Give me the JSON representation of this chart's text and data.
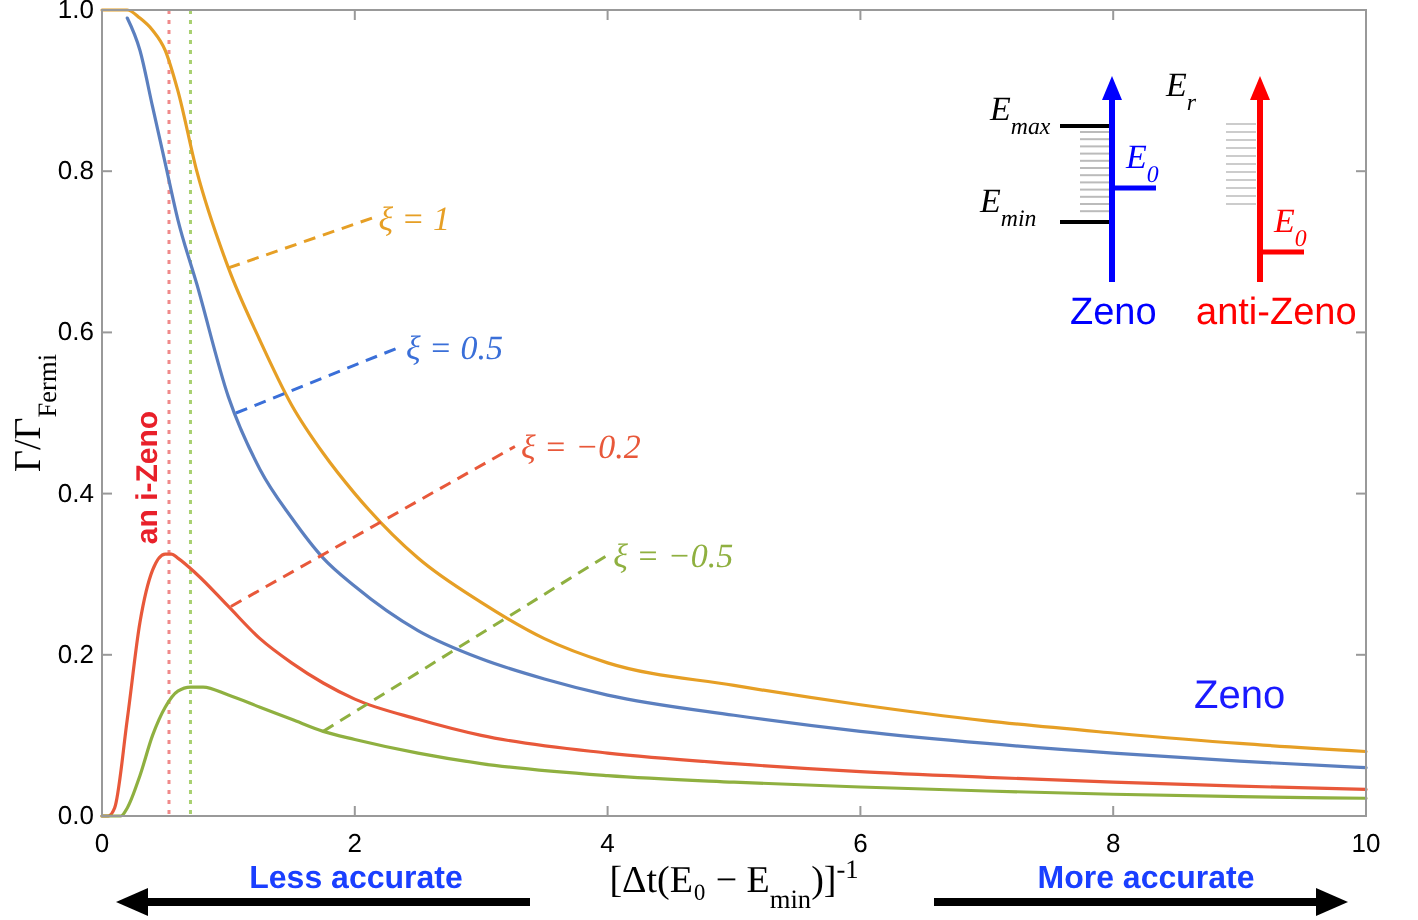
{
  "chart_data": {
    "type": "line",
    "xlabel": "[Δt(E₀ − E$_{min}$)]$^{-1}$",
    "ylabel": "Γ/Γ$_{Fermi}$",
    "xlim": [
      0,
      10
    ],
    "xticks": [
      0,
      2,
      4,
      6,
      8,
      10
    ],
    "ylim": [
      0,
      1
    ],
    "yticks": [
      {
        "value": 0,
        "label": "0.0"
      },
      {
        "value": 0.2,
        "label": "0.2"
      },
      {
        "value": 0.4,
        "label": "0.4"
      },
      {
        "value": 0.6,
        "label": "0.6"
      },
      {
        "value": 0.8,
        "label": "0.8"
      },
      {
        "value": 1,
        "label": "1.0"
      }
    ],
    "grid": false,
    "marker": "none",
    "line_style": "solid",
    "series": [
      {
        "color": "#e69f25",
        "x": [
          0,
          0.1,
          0.2,
          0.3,
          0.4,
          0.5,
          0.6,
          0.75,
          1,
          1.25,
          1.5,
          1.75,
          2,
          2.5,
          3,
          3.5,
          4,
          5,
          6,
          7,
          8,
          9,
          10
        ],
        "values": [
          1,
          1,
          1,
          0.99,
          0.975,
          0.95,
          0.9,
          0.8,
          0.68,
          0.59,
          0.51,
          0.45,
          0.4,
          0.32,
          0.265,
          0.22,
          0.19,
          0.162,
          0.138,
          0.118,
          0.103,
          0.09,
          0.08
        ]
      },
      {
        "color": "#5b7fbf",
        "x": [
          0.2,
          0.3,
          0.4,
          0.5,
          0.6,
          0.75,
          1,
          1.25,
          1.5,
          1.75,
          2,
          2.5,
          3,
          3.5,
          4,
          5,
          6,
          7,
          8,
          9,
          10
        ],
        "values": [
          0.99,
          0.95,
          0.88,
          0.81,
          0.74,
          0.66,
          0.52,
          0.43,
          0.37,
          0.32,
          0.285,
          0.23,
          0.195,
          0.17,
          0.15,
          0.125,
          0.105,
          0.09,
          0.078,
          0.068,
          0.06
        ]
      },
      {
        "color": "#e8583a",
        "x": [
          0,
          0.05,
          0.1,
          0.2,
          0.3,
          0.4,
          0.5,
          0.55,
          0.6,
          0.75,
          1,
          1.25,
          1.5,
          1.75,
          2,
          2.5,
          3,
          4,
          5,
          6,
          7,
          8,
          9,
          10
        ],
        "values": [
          0,
          0,
          0.01,
          0.12,
          0.24,
          0.305,
          0.325,
          0.325,
          0.32,
          0.3,
          0.26,
          0.22,
          0.19,
          0.165,
          0.145,
          0.12,
          0.1,
          0.078,
          0.065,
          0.055,
          0.048,
          0.042,
          0.037,
          0.033
        ]
      },
      {
        "color": "#8fb040",
        "x": [
          0,
          0.1,
          0.15,
          0.2,
          0.3,
          0.4,
          0.5,
          0.6,
          0.7,
          0.8,
          1,
          1.25,
          1.5,
          1.75,
          2,
          2.5,
          3,
          4,
          5,
          6,
          7,
          8,
          9,
          10
        ],
        "values": [
          0,
          0,
          0,
          0.01,
          0.05,
          0.1,
          0.135,
          0.155,
          0.16,
          0.16,
          0.15,
          0.135,
          0.12,
          0.105,
          0.095,
          0.078,
          0.065,
          0.05,
          0.042,
          0.036,
          0.031,
          0.027,
          0.024,
          0.022
        ]
      }
    ],
    "ref_lines": [
      {
        "axis": "x",
        "value": 0.53,
        "label": "an i-Zeno",
        "color": "#f08a8a",
        "line_style": "dotted"
      },
      {
        "axis": "x",
        "value": 0.7,
        "color": "#a8d070",
        "line_style": "dotted"
      }
    ],
    "annotations": [
      {
        "text": "ξ = 1",
        "x": 1,
        "y": 0.68
      },
      {
        "text": "ξ = 0.5",
        "x": 1.06,
        "y": 0.5
      },
      {
        "text": "ξ = −0.2",
        "x": 1.02,
        "y": 0.26
      },
      {
        "text": "ξ = −0.5",
        "x": 1.75,
        "y": 0.105
      },
      "Zeno",
      "Less accurate",
      "More accurate",
      "E$_{max}$",
      "E$_{min}$",
      "E$_{0}$",
      "E$_{r}$",
      "E$_{0}$",
      "Zeno",
      "anti-Zeno"
    ]
  }
}
